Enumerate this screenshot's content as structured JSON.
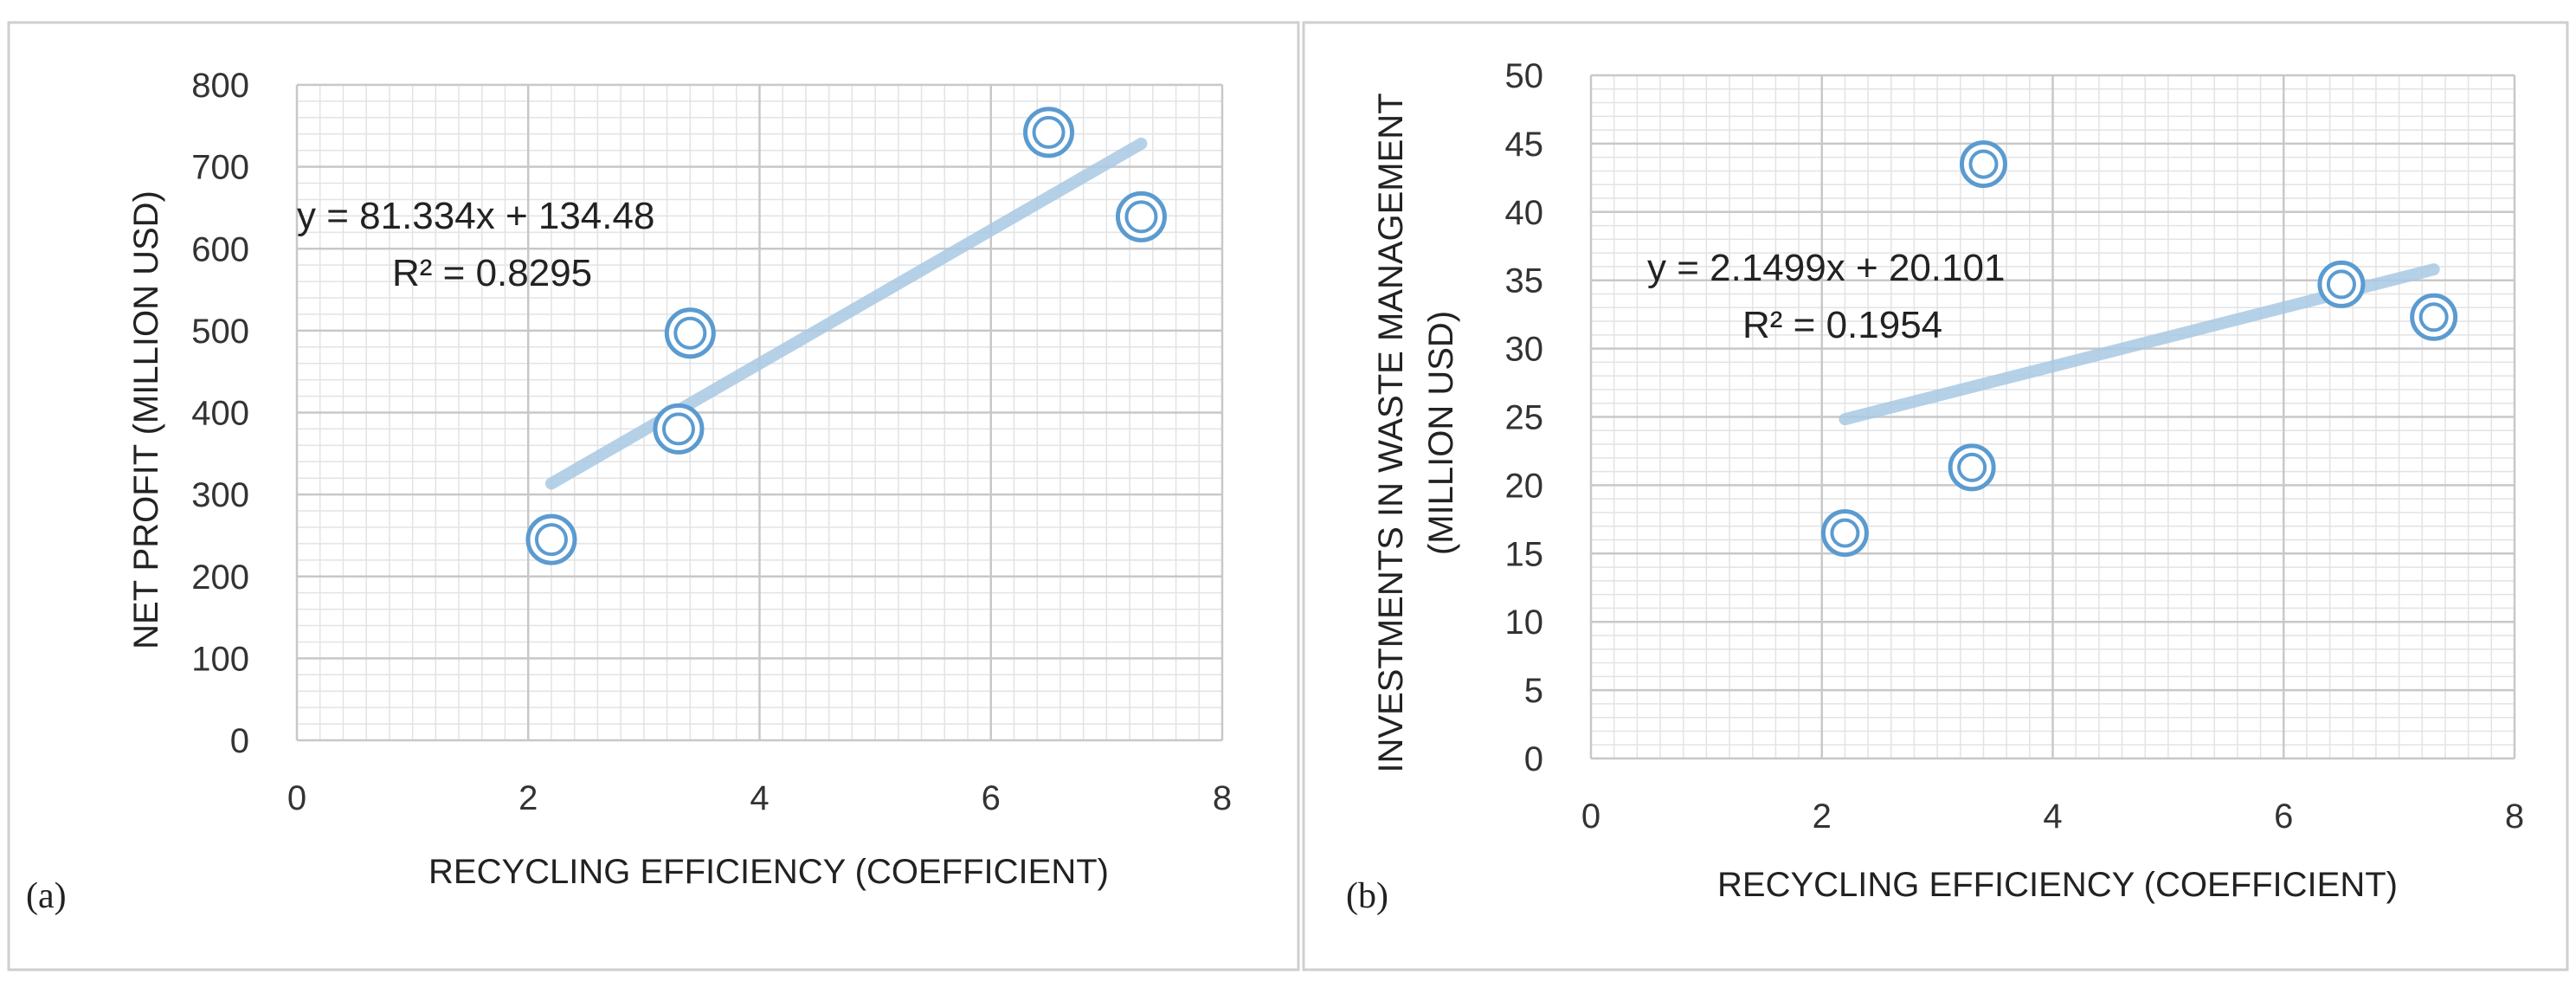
{
  "colors": {
    "marker": "#5b9bd0",
    "trendline": "#a9c9e4",
    "grid_major": "#c8c8c8",
    "grid_minor": "#e3e3e3"
  },
  "chart_data": [
    {
      "type": "scatter",
      "panel_label": "(a)",
      "xlabel": "RECYCLING EFFICIENCY (COEFFICIENT)",
      "ylabel": "NET PROFIT (MILLION USD)",
      "ylabel_lines": [
        "NET PROFIT (MILLION USD)"
      ],
      "xlim": [
        0,
        8
      ],
      "ylim": [
        0,
        800
      ],
      "x_ticks": [
        0,
        2,
        4,
        6,
        8
      ],
      "y_ticks": [
        0,
        100,
        200,
        300,
        400,
        500,
        600,
        700,
        800
      ],
      "x_tick_labels": [
        "0",
        "2",
        "4",
        "6",
        "8"
      ],
      "y_tick_labels": [
        "0",
        "100",
        "200",
        "300",
        "400",
        "500",
        "600",
        "700",
        "800"
      ],
      "x_minor_step": 0.2,
      "y_minor_step": 20,
      "points": [
        {
          "x": 2.2,
          "y": 245
        },
        {
          "x": 3.3,
          "y": 380
        },
        {
          "x": 3.4,
          "y": 497
        },
        {
          "x": 6.5,
          "y": 742
        },
        {
          "x": 7.3,
          "y": 639
        }
      ],
      "trendline": {
        "slope": 81.334,
        "intercept": 134.48,
        "x_from": 2.2,
        "x_to": 7.3
      },
      "equation": "y = 81.334x + 134.48",
      "r_squared": "R² = 0.8295",
      "grid": true
    },
    {
      "type": "scatter",
      "panel_label": "(b)",
      "xlabel": "RECYCLING EFFICIENCY (COEFFICIENT)",
      "ylabel": "INVESTMENTS IN WASTE MANAGEMENT (MILLION USD)",
      "ylabel_lines": [
        "INVESTMENTS IN WASTE MANAGEMENT",
        "(MILLION USD)"
      ],
      "xlim": [
        0,
        8
      ],
      "ylim": [
        0,
        50
      ],
      "x_ticks": [
        0,
        2,
        4,
        6,
        8
      ],
      "y_ticks": [
        0,
        5,
        10,
        15,
        20,
        25,
        30,
        35,
        40,
        45,
        50
      ],
      "x_tick_labels": [
        "0",
        "2",
        "4",
        "6",
        "8"
      ],
      "y_tick_labels": [
        "0",
        "5",
        "10",
        "15",
        "20",
        "25",
        "30",
        "35",
        "40",
        "45",
        "50"
      ],
      "x_minor_step": 0.2,
      "y_minor_step": 1,
      "points": [
        {
          "x": 2.2,
          "y": 16.5
        },
        {
          "x": 3.3,
          "y": 21.3
        },
        {
          "x": 3.4,
          "y": 43.5
        },
        {
          "x": 6.5,
          "y": 34.7
        },
        {
          "x": 7.3,
          "y": 32.3
        }
      ],
      "trendline": {
        "slope": 2.1499,
        "intercept": 20.101,
        "x_from": 2.2,
        "x_to": 7.3
      },
      "equation": "y = 2.1499x + 20.101",
      "r_squared": "R² = 0.1954",
      "grid": true
    }
  ]
}
